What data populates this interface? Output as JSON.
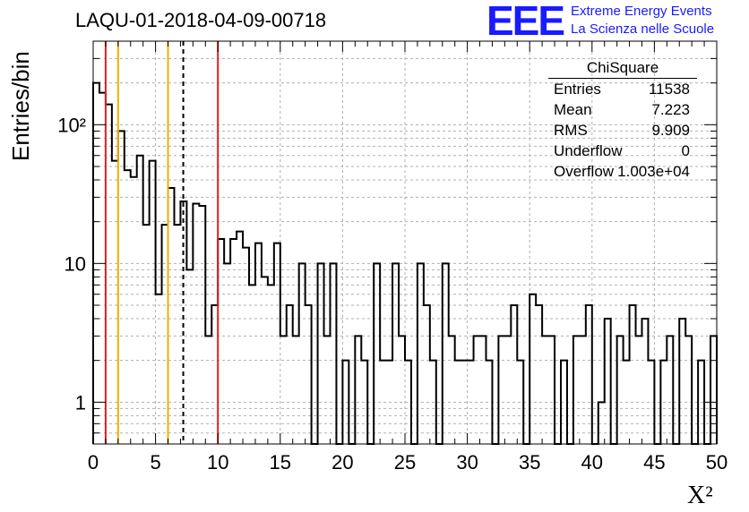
{
  "header": {
    "title": "LAQU-01-2018-04-09-00718",
    "logo_text": "EEE",
    "logo_line1": "Extreme Energy Events",
    "logo_line2": "La Scienza nelle Scuole"
  },
  "stats_box": {
    "title": "ChiSquare",
    "rows": [
      {
        "key": "Entries",
        "value": "11538"
      },
      {
        "key": "Mean",
        "value": "7.223"
      },
      {
        "key": "RMS",
        "value": "9.909"
      },
      {
        "key": "Underflow",
        "value": "0"
      },
      {
        "key": "Overflow",
        "value": "1.003e+04"
      }
    ]
  },
  "chart_data": {
    "type": "histogram",
    "title": "LAQU-01-2018-04-09-00718",
    "xlabel": "X²",
    "ylabel": "Entries/bin",
    "xlim": [
      0,
      50
    ],
    "ylim": [
      0.5,
      400
    ],
    "yscale": "log",
    "grid": true,
    "bin_width": 0.5,
    "x_ticks": [
      "0",
      "5",
      "10",
      "15",
      "20",
      "25",
      "30",
      "35",
      "40",
      "45",
      "50"
    ],
    "y_ticks": [
      {
        "value": 1,
        "label": "1"
      },
      {
        "value": 10,
        "label": "10"
      },
      {
        "value": 100,
        "label": "10²"
      }
    ],
    "bin_values": [
      200,
      170,
      140,
      55,
      90,
      47,
      42,
      60,
      19,
      55,
      6,
      19,
      35,
      19,
      28,
      9,
      27,
      26,
      3,
      5,
      15,
      10,
      15,
      17,
      13,
      7,
      14,
      8,
      7,
      14,
      3,
      5,
      3,
      10,
      5,
      0,
      10,
      3,
      10,
      0,
      2,
      0,
      3,
      2,
      0,
      10,
      2,
      2,
      10,
      3,
      2,
      0,
      10,
      5,
      2,
      0,
      10,
      3,
      2,
      2,
      2,
      3,
      3,
      2,
      0,
      3,
      3,
      5,
      2,
      0,
      6,
      5,
      3,
      3,
      0,
      2,
      0,
      3,
      3,
      5,
      0,
      1,
      4,
      0,
      3,
      2,
      5,
      3,
      4,
      2,
      0,
      2,
      3,
      0,
      4,
      3,
      0,
      2,
      0,
      3
    ],
    "vertical_lines": [
      {
        "x": 1,
        "color": "#e02020",
        "style": "solid"
      },
      {
        "x": 2,
        "color": "#f0b000",
        "style": "solid"
      },
      {
        "x": 6,
        "color": "#f0b000",
        "style": "solid"
      },
      {
        "x": 7.223,
        "color": "#000000",
        "style": "dashed"
      },
      {
        "x": 10,
        "color": "#e02020",
        "style": "solid"
      }
    ]
  }
}
